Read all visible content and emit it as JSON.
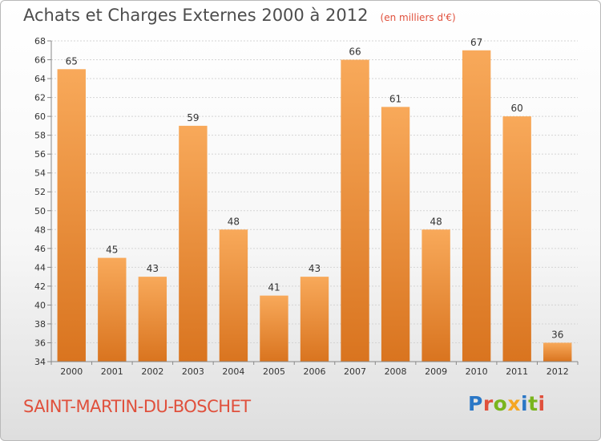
{
  "header": {
    "title": "Achats et Charges Externes 2000 à 2012",
    "subtitle": "(en milliers d'€)"
  },
  "footer": {
    "commune": "SAINT-MARTIN-DU-BOSCHET",
    "brand": "Proxiti",
    "brand_colors": [
      "#2a77c6",
      "#e0503c",
      "#7ab51d",
      "#f5a623",
      "#2a77c6",
      "#7ab51d",
      "#e0503c"
    ]
  },
  "colors": {
    "bar_light": "#f8a95a",
    "bar_dark": "#d9741f",
    "title": "#4d4d4d",
    "accent": "#e0503c"
  },
  "chart_data": {
    "type": "bar",
    "title": "Achats et Charges Externes 2000 à 2012",
    "categories": [
      "2000",
      "2001",
      "2002",
      "2003",
      "2004",
      "2005",
      "2006",
      "2007",
      "2008",
      "2009",
      "2010",
      "2011",
      "2012"
    ],
    "values": [
      65,
      45,
      43,
      59,
      48,
      41,
      43,
      66,
      61,
      48,
      67,
      60,
      36
    ],
    "xlabel": "",
    "ylabel": "",
    "ylim": [
      34,
      68
    ],
    "yticks": [
      34,
      36,
      38,
      40,
      42,
      44,
      46,
      48,
      50,
      52,
      54,
      56,
      58,
      60,
      62,
      64,
      66,
      68
    ],
    "grid": true,
    "data_labels": true,
    "legend": "none"
  }
}
